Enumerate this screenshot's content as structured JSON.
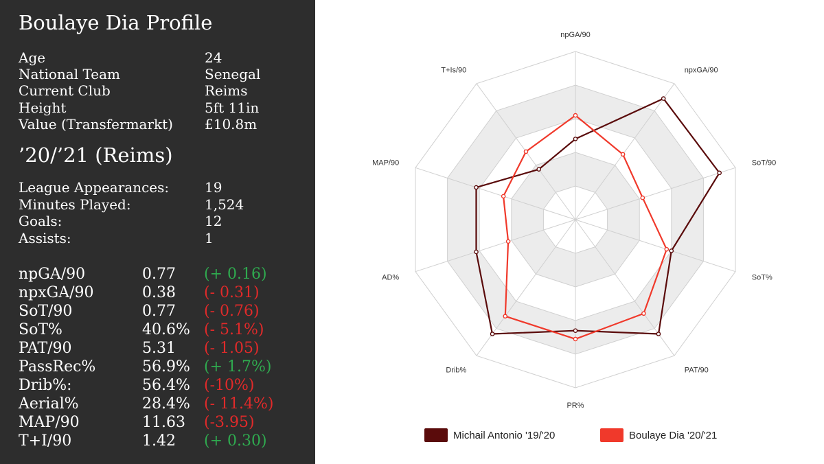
{
  "profile": {
    "title": "Boulaye Dia Profile",
    "info": [
      {
        "label": "Age",
        "value": "24"
      },
      {
        "label": "National Team",
        "value": "Senegal"
      },
      {
        "label": "Current Club",
        "value": "Reims"
      },
      {
        "label": "Height",
        "value": "5ft 11in"
      },
      {
        "label": "Value (Transfermarkt)",
        "value": "£10.8m"
      }
    ],
    "season_title": "’20/’21 (Reims)",
    "season": [
      {
        "label": "League Appearances:",
        "value": "19"
      },
      {
        "label": "Minutes Played:",
        "value": "1,524"
      },
      {
        "label": "Goals:",
        "value": "12"
      },
      {
        "label": "Assists:",
        "value": "1"
      }
    ],
    "stats": [
      {
        "label": "npGA/90",
        "value": "0.77",
        "diff": "(+ 0.16)",
        "sign": "pos"
      },
      {
        "label": "npxGA/90",
        "value": "0.38",
        "diff": "(- 0.31)",
        "sign": "neg"
      },
      {
        "label": "SoT/90",
        "value": "0.77",
        "diff": "(- 0.76)",
        "sign": "neg"
      },
      {
        "label": "SoT%",
        "value": "40.6%",
        "diff": "(- 5.1%)",
        "sign": "neg"
      },
      {
        "label": "PAT/90",
        "value": "5.31",
        "diff": "(- 1.05)",
        "sign": "neg"
      },
      {
        "label": "PassRec%",
        "value": "56.9%",
        "diff": "(+ 1.7%)",
        "sign": "pos"
      },
      {
        "label": "Drib%:",
        "value": "56.4%",
        "diff": "(-10%)",
        "sign": "neg"
      },
      {
        "label": "Aerial%",
        "value": "28.4%",
        "diff": "(- 11.4%)",
        "sign": "neg"
      },
      {
        "label": "MAP/90",
        "value": "11.63",
        "diff": "(-3.95)",
        "sign": "neg"
      },
      {
        "label": "T+I/90",
        "value": "1.42",
        "diff": "(+ 0.30)",
        "sign": "pos"
      }
    ]
  },
  "chart_data": {
    "type": "radar",
    "title": "",
    "axes": [
      "npGA/90",
      "npxGA/90",
      "SoT/90",
      "SoT%",
      "PAT/90",
      "PR%",
      "Drib%",
      "AD%",
      "MAP/90",
      "T+Is/90"
    ],
    "rlim": [
      0,
      1
    ],
    "rings": 5,
    "grid": true,
    "legend": "bottom",
    "series": [
      {
        "name": "Michail Antonio '19/'20",
        "color": "#5a0b0b",
        "values": [
          0.48,
          0.89,
          0.9,
          0.6,
          0.84,
          0.66,
          0.84,
          0.62,
          0.62,
          0.37
        ]
      },
      {
        "name": "Boulaye Dia '20/'21",
        "color": "#f0392b",
        "values": [
          0.62,
          0.48,
          0.42,
          0.57,
          0.69,
          0.71,
          0.71,
          0.42,
          0.45,
          0.5
        ]
      }
    ]
  }
}
